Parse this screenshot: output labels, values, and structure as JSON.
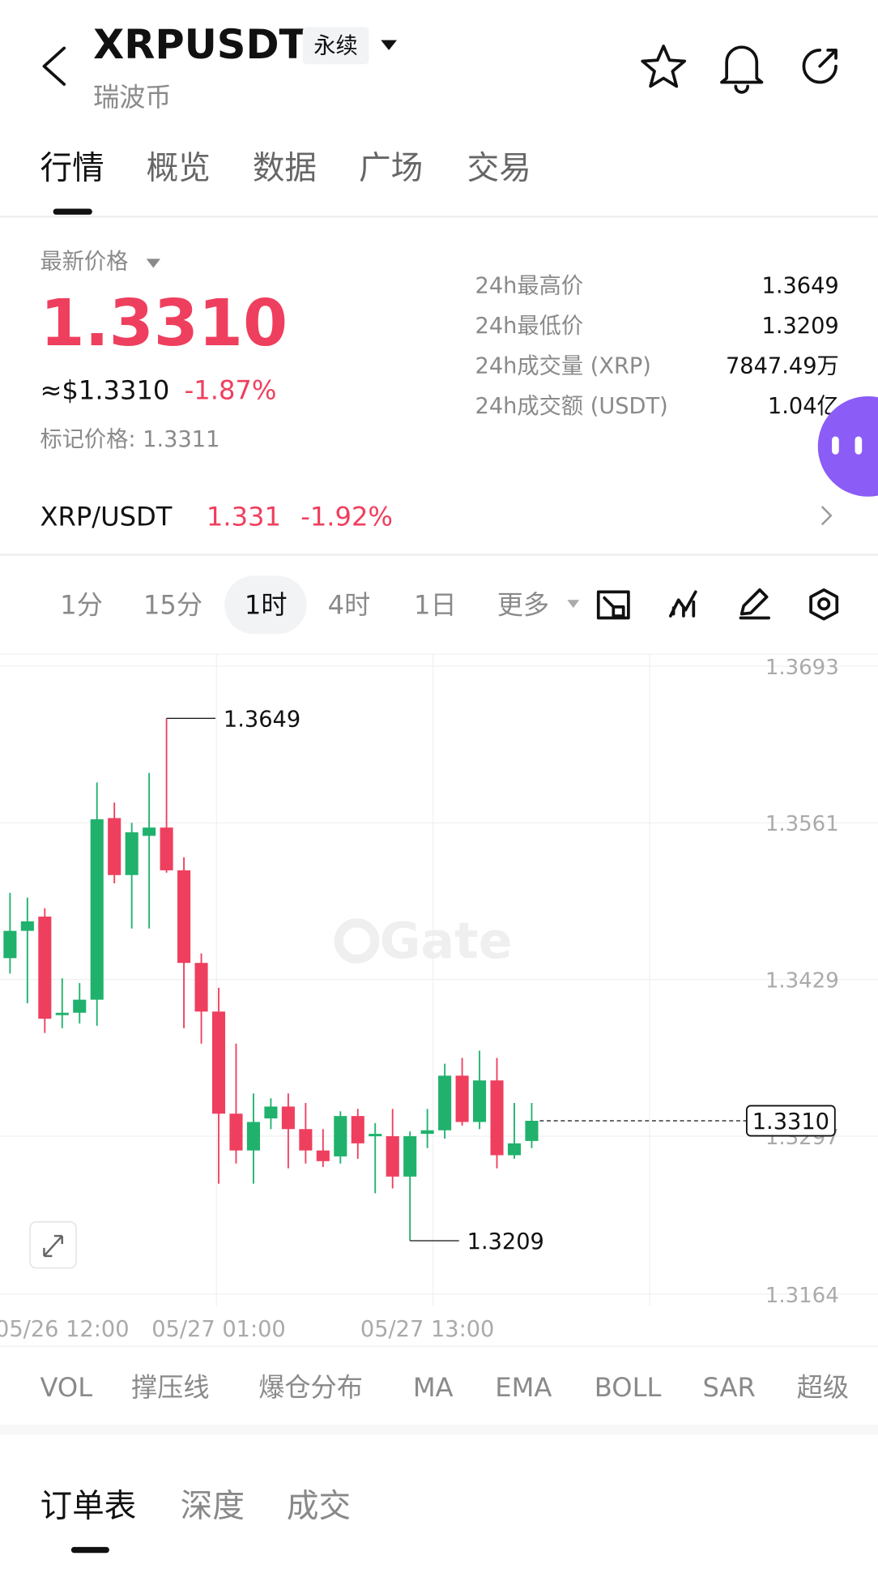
{
  "header": {
    "title": "XRPUSDT",
    "badge": "永续",
    "subtitle": "瑞波币"
  },
  "tabs": [
    "行情",
    "概览",
    "数据",
    "广场",
    "交易"
  ],
  "price": {
    "label": "最新价格",
    "last": "1.3310",
    "usd": "≈$1.3310",
    "change": "-1.87%",
    "mark": "标记价格: 1.3311"
  },
  "stats": [
    [
      "24h最高价",
      "1.3649"
    ],
    [
      "24h最低价",
      "1.3209"
    ],
    [
      "24h成交量 (XRP)",
      "7847.49万"
    ],
    [
      "24h成交额 (USDT)",
      "1.04亿"
    ]
  ],
  "pair": {
    "name": "XRP/USDT",
    "price": "1.331",
    "change": "-1.92%"
  },
  "intervals": [
    "1分",
    "15分",
    "1时",
    "4时",
    "1日",
    "更多"
  ],
  "indicators": [
    "VOL",
    "撑压线",
    "爆仓分布",
    "MA",
    "EMA",
    "BOLL",
    "SAR",
    "超级"
  ],
  "bottom_tabs": [
    "订单表",
    "深度",
    "成交"
  ],
  "chart_data": {
    "type": "candlestick",
    "watermark": "Gate",
    "categories": [
      null,
      null,
      null,
      "05/26 12:00",
      null,
      null,
      null,
      null,
      null,
      null,
      null,
      null,
      "05/27 01:00",
      null,
      null,
      null,
      null,
      null,
      null,
      null,
      null,
      null,
      null,
      null,
      "05/27 13:00",
      null,
      null,
      null,
      null,
      null,
      null
    ],
    "series": [
      {
        "up_color": "#20b26c",
        "down_color": "#ef3f5e",
        "open": [
          1.3447,
          1.347,
          1.3482,
          1.3399,
          1.3401,
          1.3412,
          1.3565,
          1.3517,
          1.355,
          1.3557,
          1.3521,
          1.3443,
          1.3402,
          1.3316,
          1.3285,
          1.3312,
          1.3322,
          1.3303,
          1.3285,
          1.328,
          1.3314,
          1.3297,
          1.3297,
          1.3263,
          1.3299,
          1.3302,
          1.3348,
          1.3309,
          1.3344,
          1.3281,
          1.3293
        ],
        "high": [
          1.3502,
          1.3498,
          1.3489,
          1.343,
          1.3426,
          1.3595,
          1.3578,
          1.3561,
          1.3603,
          1.3649,
          1.3532,
          1.3451,
          1.3422,
          1.3375,
          1.3333,
          1.3329,
          1.3333,
          1.3325,
          1.3303,
          1.3318,
          1.332,
          1.3308,
          1.332,
          1.3301,
          1.332,
          1.3358,
          1.3363,
          1.3369,
          1.3363,
          1.3325,
          1.3325
        ],
        "low": [
          1.3434,
          1.3409,
          1.3384,
          1.3388,
          1.3392,
          1.339,
          1.351,
          1.3472,
          1.3472,
          1.3519,
          1.3388,
          1.3375,
          1.3257,
          1.3274,
          1.3257,
          1.3303,
          1.327,
          1.3274,
          1.3271,
          1.3274,
          1.3278,
          1.3249,
          1.3253,
          1.3209,
          1.3287,
          1.3295,
          1.3306,
          1.3303,
          1.327,
          1.3278,
          1.3287
        ],
        "close": [
          1.347,
          1.3478,
          1.3396,
          1.3401,
          1.3412,
          1.3564,
          1.3517,
          1.3553,
          1.3557,
          1.3521,
          1.3443,
          1.3402,
          1.3316,
          1.3285,
          1.3309,
          1.3322,
          1.3303,
          1.3285,
          1.3276,
          1.3314,
          1.3291,
          1.3299,
          1.3263,
          1.3297,
          1.3302,
          1.3348,
          1.3309,
          1.3344,
          1.3281,
          1.3291,
          1.331
        ]
      }
    ],
    "last_price": {
      "value": 1.331,
      "label": "1.3310"
    },
    "ylim": [
      1.3164,
      1.3693
    ],
    "yticks": [
      1.3164,
      1.3297,
      1.3429,
      1.3561,
      1.3693
    ],
    "grid": true
  }
}
